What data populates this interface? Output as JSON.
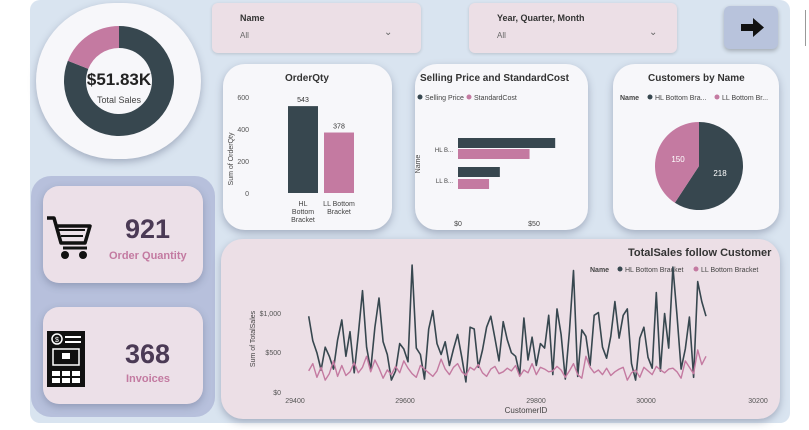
{
  "colors": {
    "dark": "#37474f",
    "pink": "#c47aa1",
    "background": "#d9e4f0"
  },
  "filters": {
    "name": {
      "label": "Name",
      "value": "All"
    },
    "period": {
      "label": "Year, Quarter, Month",
      "value": "All"
    }
  },
  "nav_button": {
    "icon": "arrow-right-icon"
  },
  "total_sales": {
    "value": "$51.83K",
    "label": "Total Sales",
    "share_dark": 0.81
  },
  "order_quantity": {
    "value": "921",
    "label": "Order Quantity",
    "icon": "shopping-cart-icon"
  },
  "invoices": {
    "value": "368",
    "label": "Invoices",
    "icon": "invoice-icon"
  },
  "charts": {
    "orderqty": {
      "title": "OrderQty",
      "ylabel": "Sum of OrderQty",
      "ticks": [
        "600",
        "400",
        "200",
        "0"
      ],
      "cat1": [
        "HL",
        "Bottom",
        "Bracket"
      ],
      "cat2": [
        "LL Bottom",
        "Bracket"
      ],
      "label1": "543",
      "label2": "378"
    },
    "price": {
      "title": "Selling Price and StandardCost",
      "legend1": "Selling Price",
      "legend2": "StandardCost",
      "ylabel": "Name",
      "cat1": "HL B...",
      "cat2": "LL B...",
      "tick1": "$0",
      "tick2": "$50"
    },
    "customers": {
      "title": "Customers by Name",
      "legend_title": "Name",
      "legend1": "HL Bottom Bra...",
      "legend2": "LL Bottom Br...",
      "label1": "218",
      "label2": "150"
    },
    "totalsales": {
      "title": "TotalSales follow Customer",
      "legend_title": "Name",
      "legend1": "HL Bottom Bracket",
      "legend2": "LL Bottom Bracket",
      "ylabel": "Sum of TotalSales",
      "xlabel": "CustomerID",
      "yticks": [
        "$1,000",
        "$500",
        "$0"
      ],
      "xticks": [
        "29400",
        "29600",
        "29800",
        "30000",
        "30200"
      ]
    }
  },
  "chart_data": [
    {
      "type": "bar",
      "title": "OrderQty",
      "ylabel": "Sum of OrderQty",
      "categories": [
        "HL Bottom Bracket",
        "LL Bottom Bracket"
      ],
      "values": [
        543,
        378
      ],
      "ylim": [
        0,
        600
      ]
    },
    {
      "type": "bar",
      "orientation": "horizontal",
      "title": "Selling Price and StandardCost",
      "ylabel": "Name",
      "categories": [
        "HL B...",
        "LL B..."
      ],
      "series": [
        {
          "name": "Selling Price",
          "values": [
            72,
            31
          ]
        },
        {
          "name": "StandardCost",
          "values": [
            53,
            23
          ]
        }
      ],
      "xlim": [
        0,
        80
      ]
    },
    {
      "type": "pie",
      "donut": false,
      "title": "Customers by Name",
      "categories": [
        "HL Bottom Bracket",
        "LL Bottom Bracket"
      ],
      "values": [
        218,
        150
      ]
    },
    {
      "type": "line",
      "title": "TotalSales follow Customer",
      "xlabel": "CustomerID",
      "ylabel": "Sum of TotalSales",
      "xlim": [
        29400,
        30200
      ],
      "ylim": [
        0,
        1250
      ],
      "series": [
        {
          "name": "HL Bottom Bracket",
          "x": [
            29440,
            29447,
            29454,
            29461,
            29468,
            29475,
            29482,
            29489,
            29496,
            29503,
            29510,
            29517,
            29524,
            29531,
            29538,
            29545,
            29552,
            29559,
            29566,
            29573,
            29580,
            29587,
            29594,
            29601,
            29608,
            29615,
            29622,
            29629,
            29636,
            29643,
            29650,
            29657,
            29664,
            29671,
            29678,
            29685,
            29692,
            29699,
            29706,
            29713,
            29720,
            29727,
            29734,
            29741,
            29748,
            29755,
            29762,
            29769,
            29776,
            29783,
            29790,
            29797,
            29804,
            29811,
            29818,
            29825,
            29832,
            29839,
            29846,
            29853,
            29860,
            29867,
            29874,
            29881,
            29888,
            29895,
            29902,
            29909,
            29916,
            29923,
            29930,
            29937,
            29944,
            29951,
            29958,
            29965,
            29972,
            29979,
            29986,
            29993,
            30000,
            30007,
            30014,
            30021,
            30028,
            30035,
            30042,
            30049,
            30056,
            30063,
            30070,
            30077,
            30084,
            30091,
            30098,
            30105,
            30112
          ],
          "values": [
            820,
            550,
            420,
            230,
            480,
            380,
            240,
            560,
            780,
            380,
            650,
            200,
            620,
            1100,
            480,
            230,
            700,
            1020,
            540,
            400,
            120,
            220,
            520,
            460,
            320,
            1380,
            470,
            400,
            130,
            680,
            880,
            520,
            400,
            540,
            280,
            460,
            620,
            370,
            100,
            700,
            680,
            260,
            450,
            700,
            820,
            580,
            330,
            760,
            560,
            420,
            380,
            180,
            800,
            340,
            590,
            280,
            520,
            470,
            830,
            180,
            900,
            620,
            130,
            650,
            1320,
            160,
            670,
            600,
            280,
            830,
            860,
            480,
            360,
            600,
            980,
            580,
            830,
            900,
            300,
            120,
            580,
            700,
            370,
            250,
            1080,
            220,
            850,
            470,
            1360,
            830,
            240,
            460,
            810,
            150,
            1200,
            980,
            820
          ]
        },
        {
          "name": "LL Bottom Bracket",
          "x": [
            29440,
            29447,
            29454,
            29461,
            29468,
            29475,
            29482,
            29489,
            29496,
            29503,
            29510,
            29517,
            29524,
            29531,
            29538,
            29545,
            29552,
            29559,
            29566,
            29573,
            29580,
            29587,
            29594,
            29601,
            29608,
            29615,
            29622,
            29629,
            29636,
            29643,
            29650,
            29657,
            29664,
            29671,
            29678,
            29685,
            29692,
            29699,
            29706,
            29713,
            29720,
            29727,
            29734,
            29741,
            29748,
            29755,
            29762,
            29769,
            29776,
            29783,
            29790,
            29797,
            29804,
            29811,
            29818,
            29825,
            29832,
            29839,
            29846,
            29853,
            29860,
            29867,
            29874,
            29881,
            29888,
            29895,
            29902,
            29909,
            29916,
            29923,
            29930,
            29937,
            29944,
            29951,
            29958,
            29965,
            29972,
            29979,
            29986,
            29993,
            30000,
            30007,
            30014,
            30021,
            30028,
            30035,
            30042,
            30049,
            30056,
            30063,
            30070,
            30077,
            30084,
            30091,
            30098,
            30105,
            30112
          ],
          "values": [
            220,
            300,
            150,
            260,
            120,
            190,
            330,
            160,
            280,
            170,
            210,
            310,
            200,
            260,
            380,
            210,
            340,
            250,
            140,
            230,
            180,
            270,
            200,
            330,
            250,
            190,
            150,
            280,
            240,
            200,
            160,
            220,
            350,
            240,
            180,
            260,
            300,
            210,
            170,
            260,
            230,
            290,
            200,
            160,
            240,
            270,
            190,
            210,
            250,
            220,
            280,
            160,
            230,
            200,
            300,
            180,
            260,
            240,
            210,
            220,
            270,
            230,
            150,
            220,
            300,
            180,
            140,
            380,
            260,
            200,
            230,
            180,
            250,
            170,
            210,
            240,
            260,
            120,
            200,
            230,
            150,
            260,
            220,
            180,
            270,
            230,
            200,
            240,
            250,
            210,
            140,
            330,
            260,
            190,
            450,
            290,
            380
          ]
        }
      ]
    }
  ]
}
